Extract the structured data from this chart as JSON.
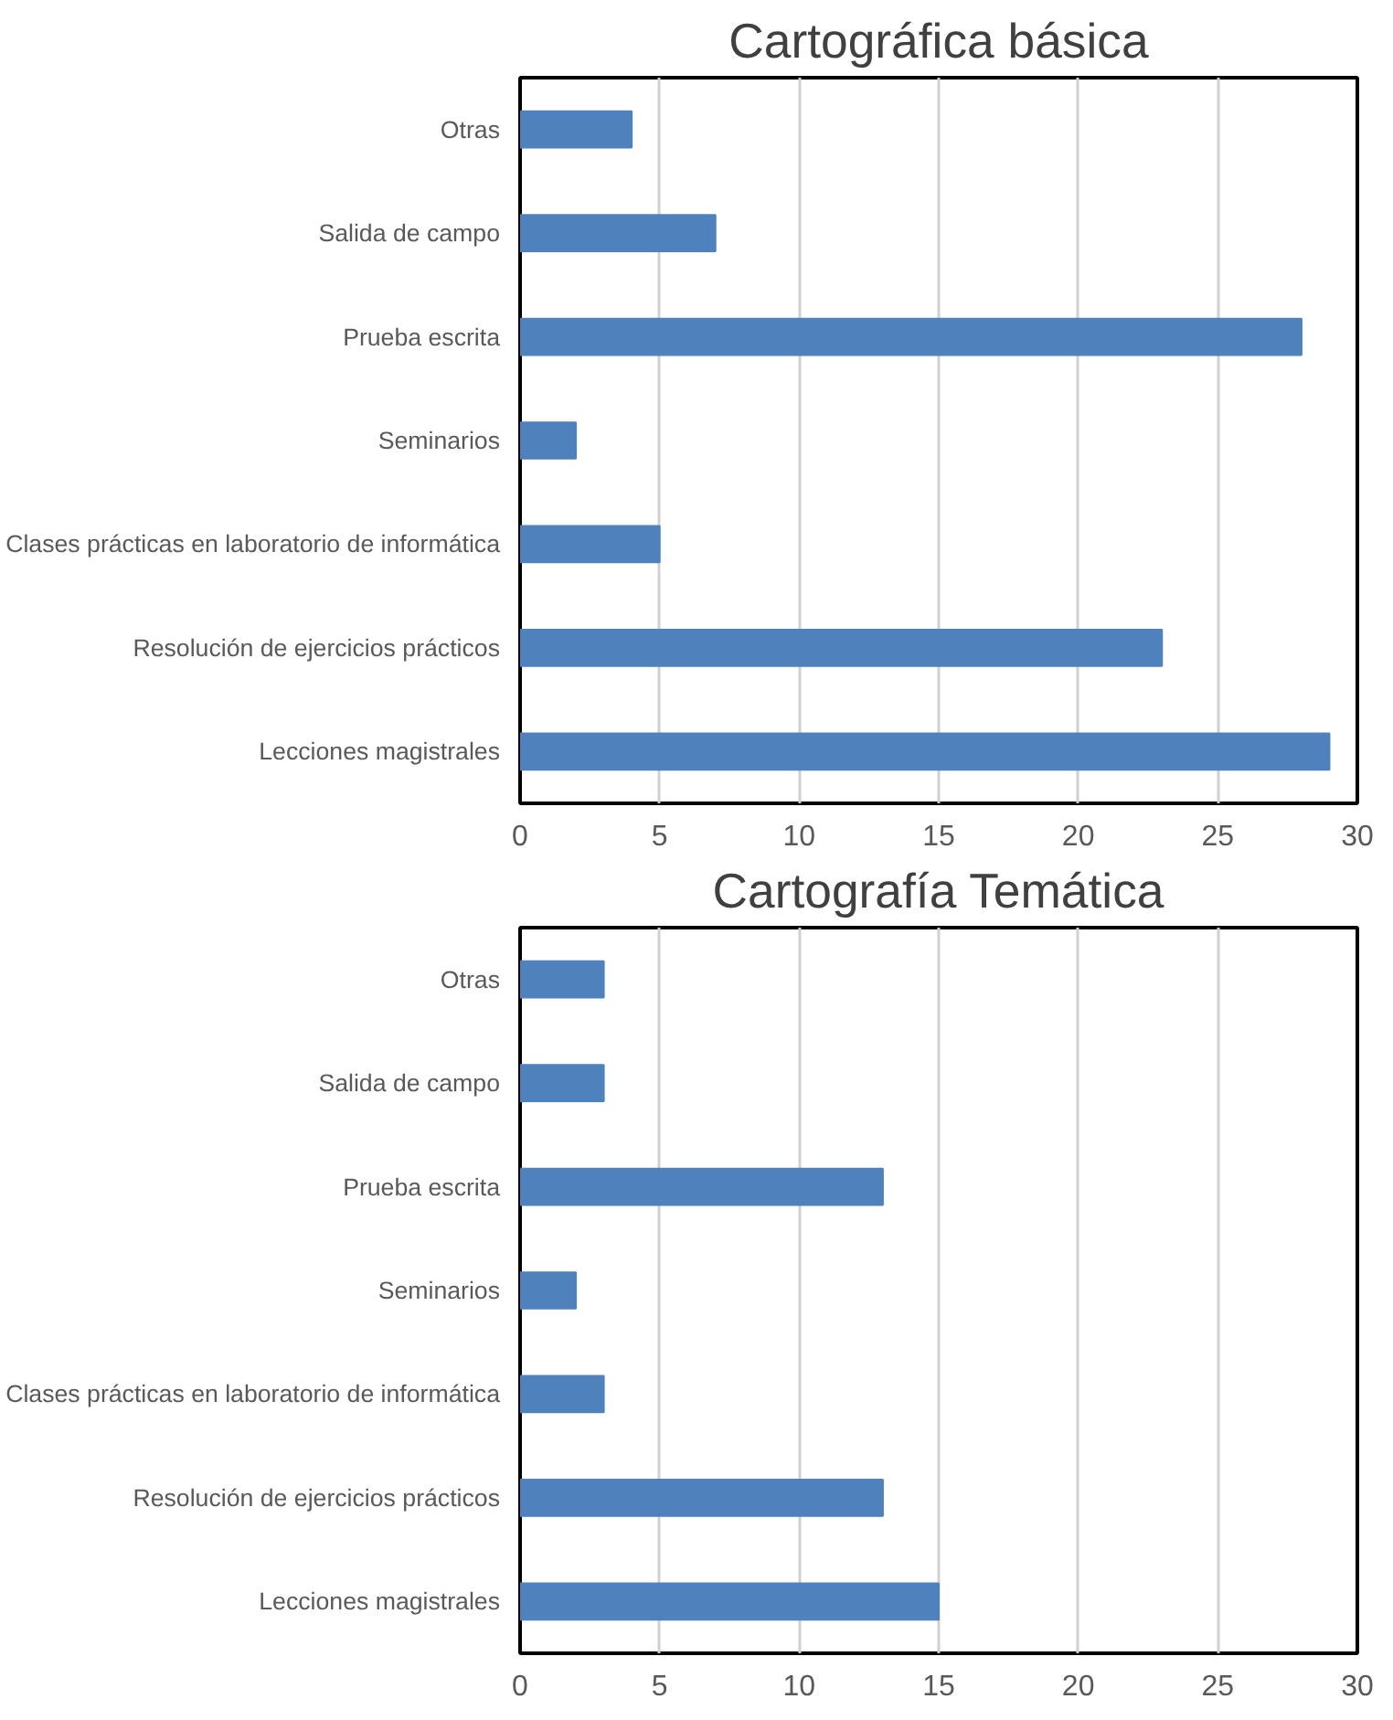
{
  "chart_data": [
    {
      "type": "bar",
      "orientation": "horizontal",
      "title": "Cartográfica básica",
      "categories": [
        "Otras",
        "Salida de campo",
        "Prueba escrita",
        "Seminarios",
        "Clases prácticas en laboratorio de informática",
        "Resolución de ejercicios prácticos",
        "Lecciones magistrales"
      ],
      "values": [
        4,
        7,
        28,
        2,
        5,
        23,
        29
      ],
      "color": "#4f81bd",
      "xlim": [
        0,
        30
      ],
      "xticks": [
        0,
        5,
        10,
        15,
        20,
        25,
        30
      ],
      "grid": "x"
    },
    {
      "type": "bar",
      "orientation": "horizontal",
      "title": "Cartografía Temática",
      "categories": [
        "Otras",
        "Salida de campo",
        "Prueba escrita",
        "Seminarios",
        "Clases prácticas en laboratorio de informática",
        "Resolución de ejercicios prácticos",
        "Lecciones magistrales"
      ],
      "values": [
        3,
        3,
        13,
        2,
        3,
        13,
        15
      ],
      "color": "#4f81bd",
      "xlim": [
        0,
        30
      ],
      "xticks": [
        0,
        5,
        10,
        15,
        20,
        25,
        30
      ],
      "grid": "x"
    }
  ]
}
